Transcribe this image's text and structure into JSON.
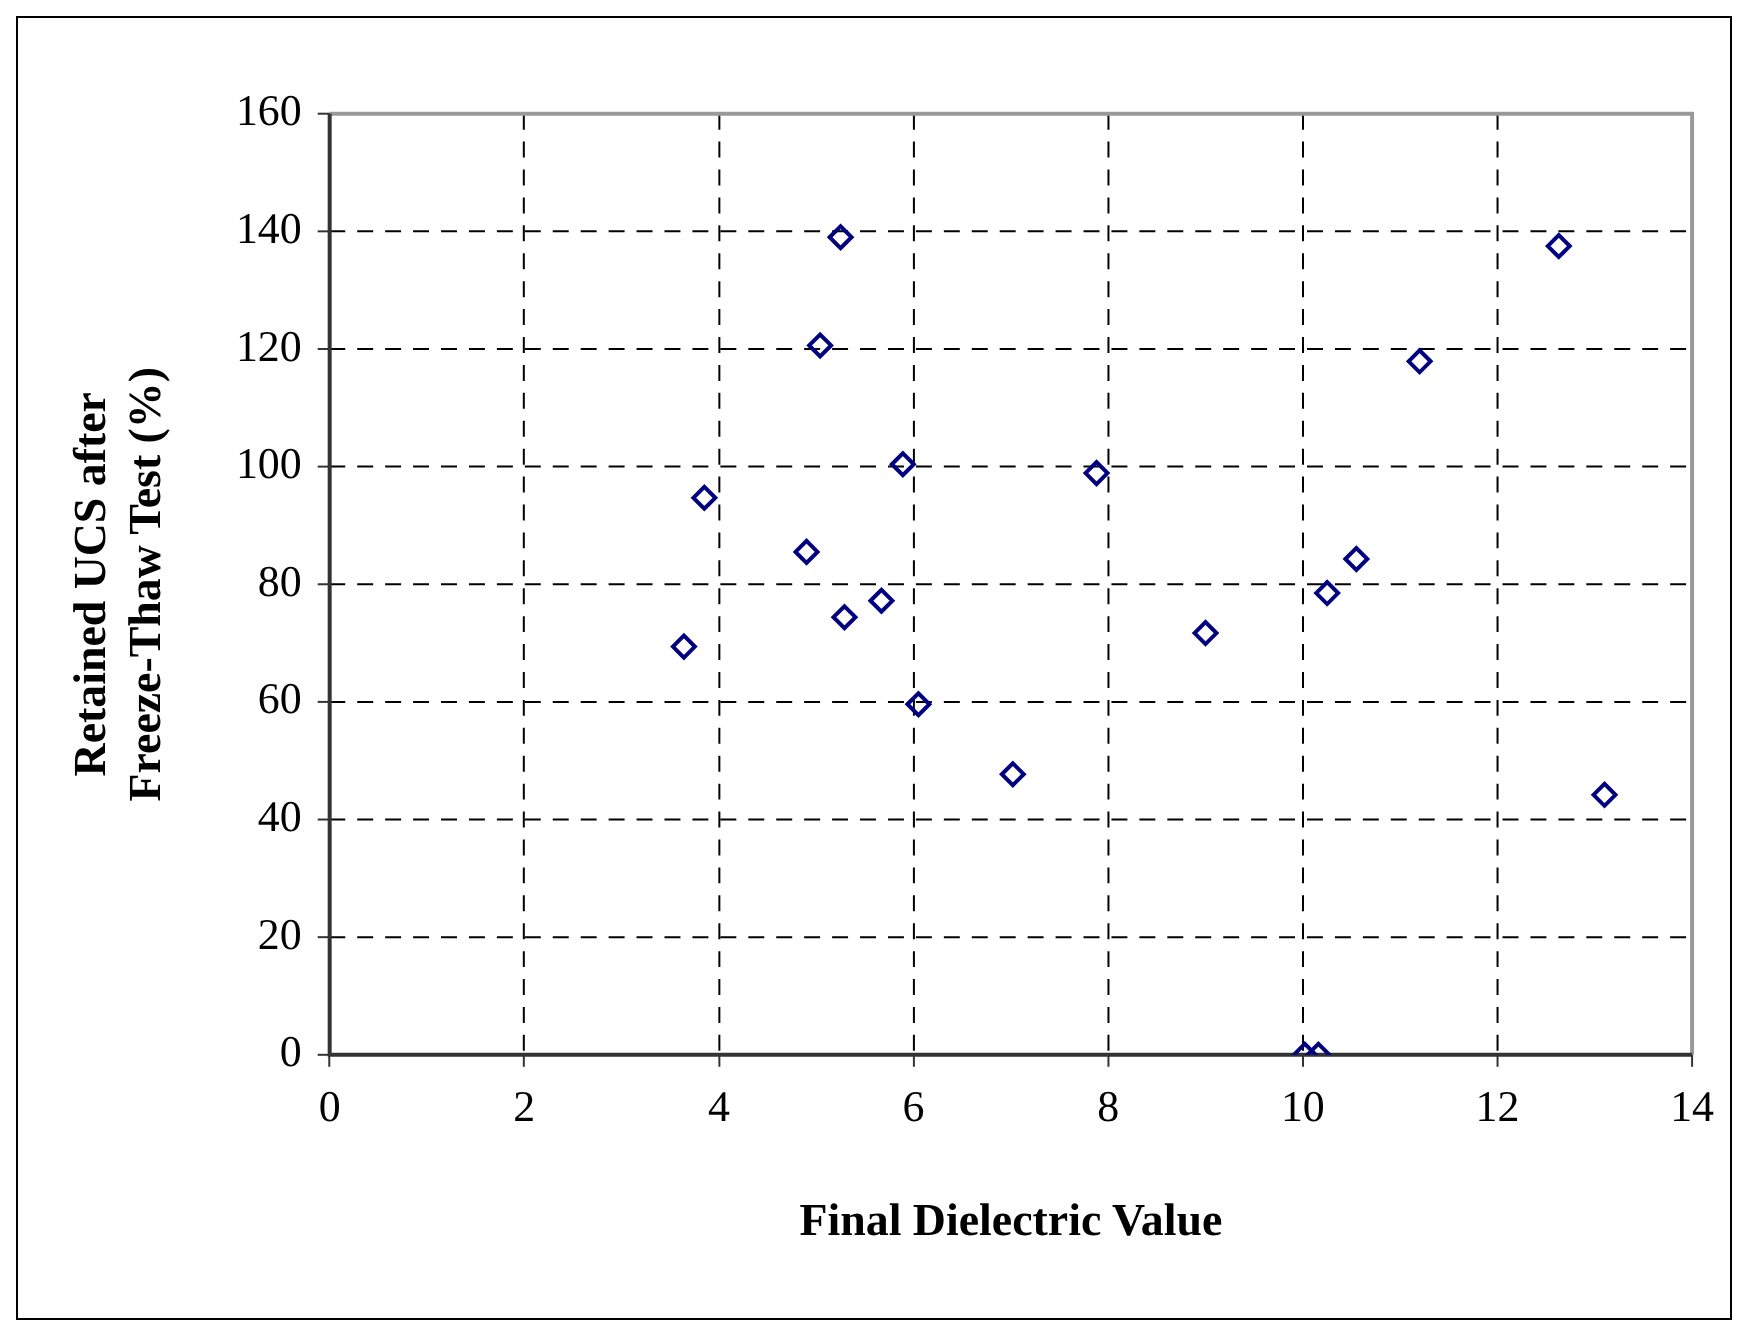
{
  "chart_data": {
    "type": "scatter",
    "xlabel": "Final Dielectric Value",
    "ylabel": "Retained UCS after\nFreeze-Thaw Test (%)",
    "xlim": [
      0,
      14
    ],
    "xticks": [
      0,
      2,
      4,
      6,
      8,
      10,
      12,
      14
    ],
    "ylim": [
      0,
      160
    ],
    "yticks": [
      0,
      20,
      40,
      60,
      80,
      100,
      120,
      140,
      160
    ],
    "grid": true,
    "marker": "diamond",
    "legend": false,
    "series": [
      {
        "color": "#000080",
        "x": [
          5.25,
          5.04,
          5.89,
          3.85,
          4.9,
          5.67,
          5.29,
          3.64,
          6.05,
          7.02,
          12.63,
          11.2,
          7.88,
          10.55,
          10.25,
          9.0,
          13.1,
          10.02,
          10.16
        ],
        "values": [
          139,
          120.6,
          100.4,
          94.7,
          85.5,
          77.2,
          74.4,
          69.4,
          59.6,
          47.7,
          137.5,
          117.9,
          98.9,
          84.3,
          78.5,
          71.7,
          44.2,
          0,
          0
        ]
      }
    ]
  }
}
